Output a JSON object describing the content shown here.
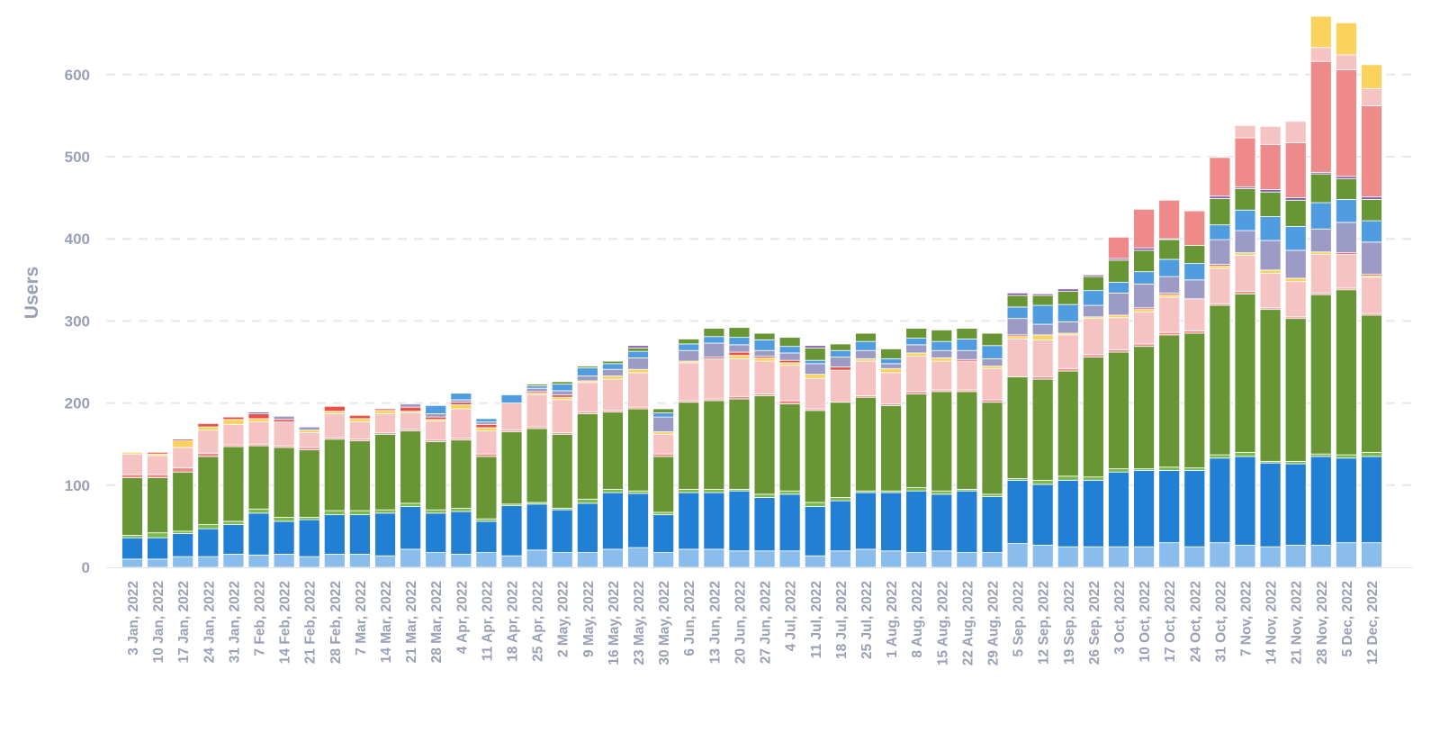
{
  "chart_data": {
    "type": "bar",
    "stacked": true,
    "title": "",
    "xlabel": "",
    "ylabel": "Users",
    "ylim": [
      0,
      680
    ],
    "yticks": [
      0,
      100,
      200,
      300,
      400,
      500,
      600
    ],
    "grid": "horizontal dashed",
    "legend": "none",
    "categories": [
      "3 Jan, 2022",
      "10 Jan, 2022",
      "17 Jan, 2022",
      "24 Jan, 2022",
      "31 Jan, 2022",
      "7 Feb, 2022",
      "14 Feb, 2022",
      "21 Feb, 2022",
      "28 Feb, 2022",
      "7 Mar, 2022",
      "14 Mar, 2022",
      "21 Mar, 2022",
      "28 Mar, 2022",
      "4 Apr, 2022",
      "11 Apr, 2022",
      "18 Apr, 2022",
      "25 Apr, 2022",
      "2 May, 2022",
      "9 May, 2022",
      "16 May, 2022",
      "23 May, 2022",
      "30 May, 2022",
      "6 Jun, 2022",
      "13 Jun, 2022",
      "20 Jun, 2022",
      "27 Jun, 2022",
      "4 Jul, 2022",
      "11 Jul, 2022",
      "18 Jul, 2022",
      "25 Jul, 2022",
      "1 Aug, 2022",
      "8 Aug, 2022",
      "15 Aug, 2022",
      "22 Aug, 2022",
      "29 Aug, 2022",
      "5 Sep, 2022",
      "12 Sep, 2022",
      "19 Sep, 2022",
      "26 Sep, 2022",
      "3 Oct, 2022",
      "10 Oct, 2022",
      "17 Oct, 2022",
      "24 Oct, 2022",
      "31 Oct, 2022",
      "7 Nov, 2022",
      "14 Nov, 2022",
      "21 Nov, 2022",
      "28 Nov, 2022",
      "5 Dec, 2022",
      "12 Dec, 2022"
    ],
    "series": [
      {
        "color": "#8bbdec",
        "values": [
          10,
          10,
          13,
          13,
          16,
          15,
          16,
          13,
          16,
          16,
          14,
          22,
          18,
          16,
          18,
          14,
          21,
          18,
          18,
          22,
          24,
          18,
          22,
          22,
          20,
          20,
          20,
          14,
          20,
          22,
          20,
          18,
          20,
          18,
          18,
          29,
          27,
          25,
          25,
          25,
          25,
          30,
          25,
          30,
          27,
          25,
          27,
          27,
          30,
          30
        ]
      },
      {
        "color": "#2180d4",
        "values": [
          26,
          26,
          28,
          34,
          36,
          51,
          40,
          45,
          48,
          48,
          52,
          52,
          48,
          52,
          38,
          61,
          56,
          52,
          60,
          69,
          66,
          46,
          69,
          69,
          73,
          65,
          69,
          60,
          61,
          69,
          71,
          75,
          69,
          75,
          68,
          77,
          74,
          81,
          81,
          91,
          93,
          88,
          93,
          103,
          108,
          102,
          99,
          108,
          103,
          105
        ]
      },
      {
        "color": "#7cb94a",
        "values": [
          3,
          6,
          3,
          5,
          4,
          5,
          5,
          3,
          5,
          5,
          4,
          4,
          4,
          4,
          3,
          2,
          2,
          2,
          5,
          4,
          3,
          3,
          4,
          4,
          2,
          4,
          4,
          5,
          4,
          2,
          2,
          4,
          4,
          2,
          3,
          2,
          5,
          5,
          4,
          4,
          2,
          4,
          3,
          4,
          5,
          2,
          3,
          3,
          4,
          5
        ]
      },
      {
        "color": "#699635",
        "values": [
          70,
          67,
          72,
          83,
          91,
          77,
          85,
          82,
          87,
          85,
          92,
          88,
          83,
          83,
          76,
          88,
          90,
          90,
          104,
          94,
          100,
          68,
          106,
          108,
          110,
          120,
          106,
          112,
          116,
          114,
          104,
          114,
          121,
          119,
          112,
          124,
          123,
          128,
          146,
          142,
          149,
          161,
          164,
          182,
          193,
          185,
          174,
          194,
          201,
          167
        ]
      },
      {
        "color": "#ee8a8a",
        "values": [
          4,
          4,
          5,
          4,
          2,
          2,
          2,
          3,
          2,
          2,
          2,
          2,
          2,
          2,
          3,
          2,
          2,
          2,
          2,
          2,
          2,
          3,
          2,
          2,
          3,
          2,
          4,
          2,
          0,
          2,
          2,
          3,
          2,
          2,
          3,
          0,
          3,
          3,
          3,
          3,
          3,
          3,
          3,
          2,
          3,
          2,
          2,
          2,
          2,
          2
        ]
      },
      {
        "color": "#f6c3c3",
        "values": [
          25,
          23,
          25,
          28,
          25,
          27,
          29,
          18,
          29,
          21,
          23,
          20,
          23,
          36,
          28,
          33,
          39,
          40,
          36,
          38,
          42,
          24,
          46,
          49,
          46,
          40,
          43,
          37,
          39,
          42,
          38,
          43,
          35,
          35,
          38,
          46,
          45,
          41,
          44,
          39,
          39,
          43,
          39,
          43,
          44,
          42,
          43,
          47,
          41,
          44
        ]
      },
      {
        "color": "#fbd35c",
        "values": [
          2,
          2,
          8,
          4,
          6,
          4,
          0,
          3,
          3,
          4,
          4,
          2,
          2,
          5,
          4,
          0,
          2,
          3,
          2,
          4,
          4,
          3,
          2,
          0,
          4,
          4,
          3,
          5,
          0,
          3,
          5,
          4,
          4,
          0,
          3,
          3,
          6,
          2,
          2,
          3,
          3,
          3,
          0,
          3,
          3,
          4,
          4,
          3,
          0,
          2
        ]
      },
      {
        "color": "#e8504c",
        "values": [
          0,
          2,
          2,
          4,
          3,
          6,
          3,
          0,
          6,
          4,
          2,
          5,
          3,
          3,
          4,
          0,
          2,
          3,
          0,
          0,
          0,
          0,
          0,
          2,
          4,
          2,
          3,
          0,
          4,
          0,
          0,
          0,
          0,
          2,
          0,
          2,
          0,
          0,
          0,
          0,
          2,
          2,
          0,
          2,
          0,
          0,
          0,
          0,
          2,
          2
        ]
      },
      {
        "color": "#9b9bc5",
        "values": [
          0,
          0,
          0,
          0,
          0,
          0,
          4,
          4,
          0,
          0,
          0,
          4,
          4,
          3,
          3,
          0,
          4,
          5,
          6,
          8,
          14,
          18,
          13,
          17,
          9,
          7,
          9,
          13,
          12,
          10,
          6,
          10,
          9,
          11,
          9,
          20,
          13,
          14,
          14,
          27,
          29,
          20,
          23,
          30,
          27,
          36,
          34,
          28,
          37,
          39
        ]
      },
      {
        "color": "#4f9de0",
        "values": [
          0,
          0,
          0,
          0,
          0,
          0,
          0,
          0,
          0,
          0,
          0,
          0,
          10,
          8,
          4,
          10,
          3,
          8,
          10,
          7,
          8,
          5,
          8,
          8,
          9,
          13,
          8,
          4,
          8,
          11,
          6,
          8,
          11,
          14,
          16,
          14,
          23,
          21,
          18,
          13,
          15,
          21,
          20,
          18,
          25,
          29,
          29,
          32,
          28,
          26
        ]
      },
      {
        "color": "#699635",
        "values": [
          0,
          0,
          0,
          0,
          0,
          0,
          0,
          0,
          0,
          0,
          0,
          0,
          0,
          0,
          0,
          0,
          2,
          3,
          2,
          3,
          4,
          5,
          6,
          10,
          12,
          8,
          11,
          15,
          8,
          10,
          12,
          12,
          14,
          13,
          15,
          14,
          12,
          16,
          17,
          27,
          26,
          24,
          22,
          32,
          26,
          30,
          32,
          35,
          25,
          26
        ]
      },
      {
        "color": "#8c5bb0",
        "values": [
          0,
          0,
          0,
          0,
          0,
          2,
          0,
          0,
          0,
          0,
          0,
          0,
          0,
          0,
          0,
          0,
          0,
          0,
          0,
          0,
          3,
          0,
          0,
          0,
          0,
          0,
          0,
          3,
          0,
          0,
          0,
          0,
          0,
          0,
          0,
          3,
          2,
          3,
          2,
          2,
          3,
          1,
          0,
          3,
          2,
          3,
          3,
          2,
          3,
          3
        ]
      },
      {
        "color": "#ee8a8a",
        "values": [
          0,
          0,
          0,
          0,
          0,
          0,
          0,
          0,
          0,
          0,
          0,
          0,
          0,
          0,
          0,
          0,
          0,
          0,
          0,
          0,
          0,
          0,
          0,
          0,
          0,
          0,
          0,
          0,
          0,
          0,
          0,
          0,
          0,
          0,
          0,
          0,
          0,
          0,
          0,
          26,
          47,
          47,
          42,
          47,
          60,
          55,
          67,
          135,
          130,
          111
        ]
      },
      {
        "color": "#f6c3c3",
        "values": [
          0,
          0,
          0,
          0,
          0,
          0,
          0,
          0,
          0,
          0,
          0,
          0,
          0,
          0,
          0,
          0,
          0,
          0,
          0,
          0,
          0,
          0,
          0,
          0,
          0,
          0,
          0,
          0,
          0,
          0,
          0,
          0,
          0,
          0,
          0,
          0,
          0,
          0,
          0,
          0,
          0,
          0,
          0,
          0,
          15,
          22,
          26,
          17,
          18,
          21
        ]
      },
      {
        "color": "#fbd35c",
        "values": [
          0,
          0,
          0,
          0,
          0,
          0,
          0,
          0,
          0,
          0,
          0,
          0,
          0,
          0,
          0,
          0,
          0,
          0,
          0,
          0,
          0,
          0,
          0,
          0,
          0,
          0,
          0,
          0,
          0,
          0,
          0,
          0,
          0,
          0,
          0,
          0,
          0,
          0,
          0,
          0,
          0,
          0,
          0,
          0,
          0,
          0,
          0,
          38,
          39,
          29
        ]
      }
    ]
  }
}
